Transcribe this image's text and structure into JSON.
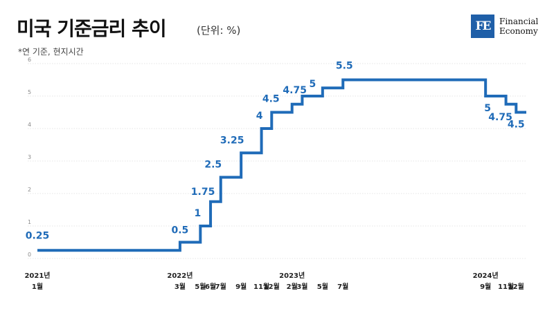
{
  "header": {
    "title": "미국 기준금리 추이",
    "unit": "(단위: %)",
    "note": "*연 기준, 현지시간",
    "logo_mark": "FE",
    "logo_line1": "Financial",
    "logo_line2": "Economy"
  },
  "chart_data": {
    "type": "line",
    "step": true,
    "title": "미국 기준금리 추이",
    "xlabel": "",
    "ylabel": "",
    "ylim": [
      0,
      6
    ],
    "yticks": [
      0,
      1,
      2,
      3,
      4,
      5,
      6
    ],
    "grid": true,
    "x": [
      "2021-01",
      "2022-03",
      "2022-05",
      "2022-06",
      "2022-07",
      "2022-09",
      "2022-11",
      "2022-12",
      "2023-02",
      "2023-03",
      "2023-05",
      "2023-07",
      "2024-09",
      "2024-11",
      "2024-12"
    ],
    "series": [
      {
        "values": [
          0.25,
          0.5,
          1,
          1.75,
          2.5,
          3.25,
          4,
          4.5,
          4.75,
          5,
          5.25,
          5.5,
          5,
          4.75,
          4.5
        ]
      }
    ],
    "point_labels": [
      {
        "x": "2021-01",
        "text": "0.25"
      },
      {
        "x": "2022-03",
        "text": "0.5"
      },
      {
        "x": "2022-05",
        "text": "1"
      },
      {
        "x": "2022-06",
        "text": "1.75"
      },
      {
        "x": "2022-07",
        "text": "2.5"
      },
      {
        "x": "2022-09",
        "text": "3.25"
      },
      {
        "x": "2022-11",
        "text": "4"
      },
      {
        "x": "2022-12",
        "text": "4.5"
      },
      {
        "x": "2023-02",
        "text": "4.75"
      },
      {
        "x": "2023-03",
        "text": "5"
      },
      {
        "x": "2023-07",
        "text": "5.5"
      },
      {
        "x": "2024-09",
        "text": "5"
      },
      {
        "x": "2024-11",
        "text": "4.75"
      },
      {
        "x": "2024-12",
        "text": "4.5"
      }
    ],
    "x_tick_labels": [
      {
        "x": "2021-01",
        "year": "2021년",
        "month": "1월"
      },
      {
        "x": "2022-03",
        "year": "2022년",
        "month": "3월"
      },
      {
        "x": "2022-05",
        "year": "",
        "month": "5월"
      },
      {
        "x": "2022-06",
        "year": "",
        "month": "6월"
      },
      {
        "x": "2022-07",
        "year": "",
        "month": "7월"
      },
      {
        "x": "2022-09",
        "year": "",
        "month": "9월"
      },
      {
        "x": "2022-11",
        "year": "",
        "month": "11월"
      },
      {
        "x": "2022-12",
        "year": "",
        "month": "12월"
      },
      {
        "x": "2023-02",
        "year": "2023년",
        "month": "2월"
      },
      {
        "x": "2023-03",
        "year": "",
        "month": "3월"
      },
      {
        "x": "2023-05",
        "year": "",
        "month": "5월"
      },
      {
        "x": "2023-07",
        "year": "",
        "month": "7월"
      },
      {
        "x": "2024-09",
        "year": "2024년",
        "month": "9월"
      },
      {
        "x": "2024-11",
        "year": "",
        "month": "11월"
      },
      {
        "x": "2024-12",
        "year": "",
        "month": "12월"
      }
    ],
    "x_end": "2025-01",
    "line_color": "#1f6bb8",
    "label_color": "#1f6bb8",
    "grid_color": "#dddddd"
  }
}
